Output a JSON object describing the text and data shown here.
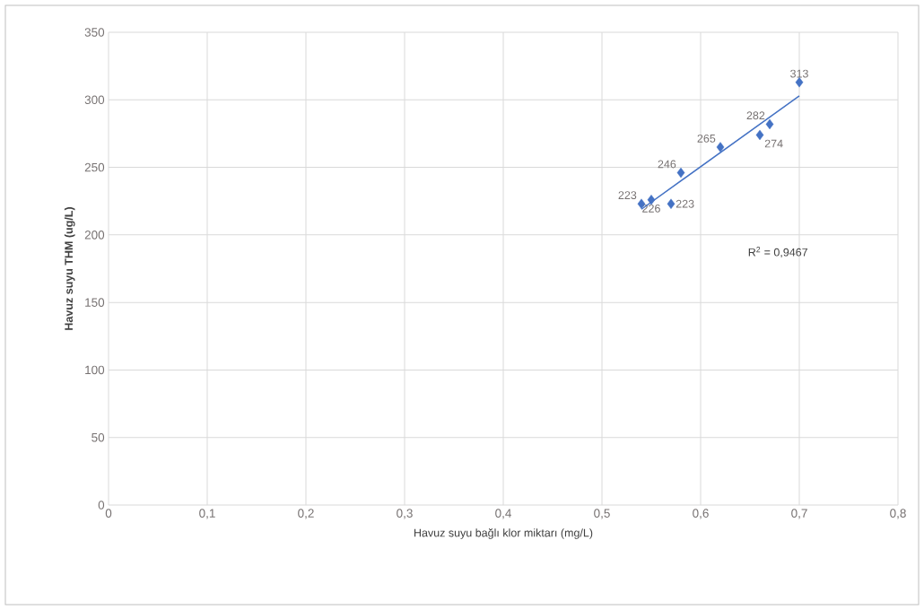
{
  "chart_data": {
    "type": "scatter",
    "xlabel": "Havuz suyu bağlı klor miktarı (mg/L)",
    "ylabel": "Havuz suyu THM (ug/L)",
    "series": [
      {
        "color": "#4472c4",
        "marker": "diamond",
        "x": [
          0.54,
          0.55,
          0.57,
          0.58,
          0.62,
          0.66,
          0.67,
          0.7
        ],
        "values": [
          223,
          226,
          223,
          246,
          265,
          274,
          282,
          313
        ],
        "value_labels": [
          "223",
          "226",
          "223",
          "246",
          "265",
          "274",
          "282",
          "313"
        ]
      },
      {
        "type": "line",
        "marker": "none",
        "color": "#4472c4",
        "x": [
          0.54,
          0.7
        ],
        "values": [
          219,
          303
        ]
      }
    ],
    "annotations": [
      "R$^{2}$ = 0,9467"
    ],
    "xlim": [
      0,
      0.8
    ],
    "ylim": [
      0,
      350
    ],
    "xticks": [
      0,
      {
        "value": 0.1,
        "label": "0,1"
      },
      {
        "value": 0.2,
        "label": "0,2"
      },
      {
        "value": 0.3,
        "label": "0,3"
      },
      {
        "value": 0.4,
        "label": "0,4"
      },
      {
        "value": 0.5,
        "label": "0,5"
      },
      {
        "value": 0.6,
        "label": "0,6"
      },
      {
        "value": 0.7,
        "label": "0,7"
      },
      {
        "value": 0.8,
        "label": "0,8"
      }
    ],
    "yticks": [
      0,
      50,
      100,
      150,
      200,
      250,
      300,
      350
    ],
    "grid": true
  }
}
